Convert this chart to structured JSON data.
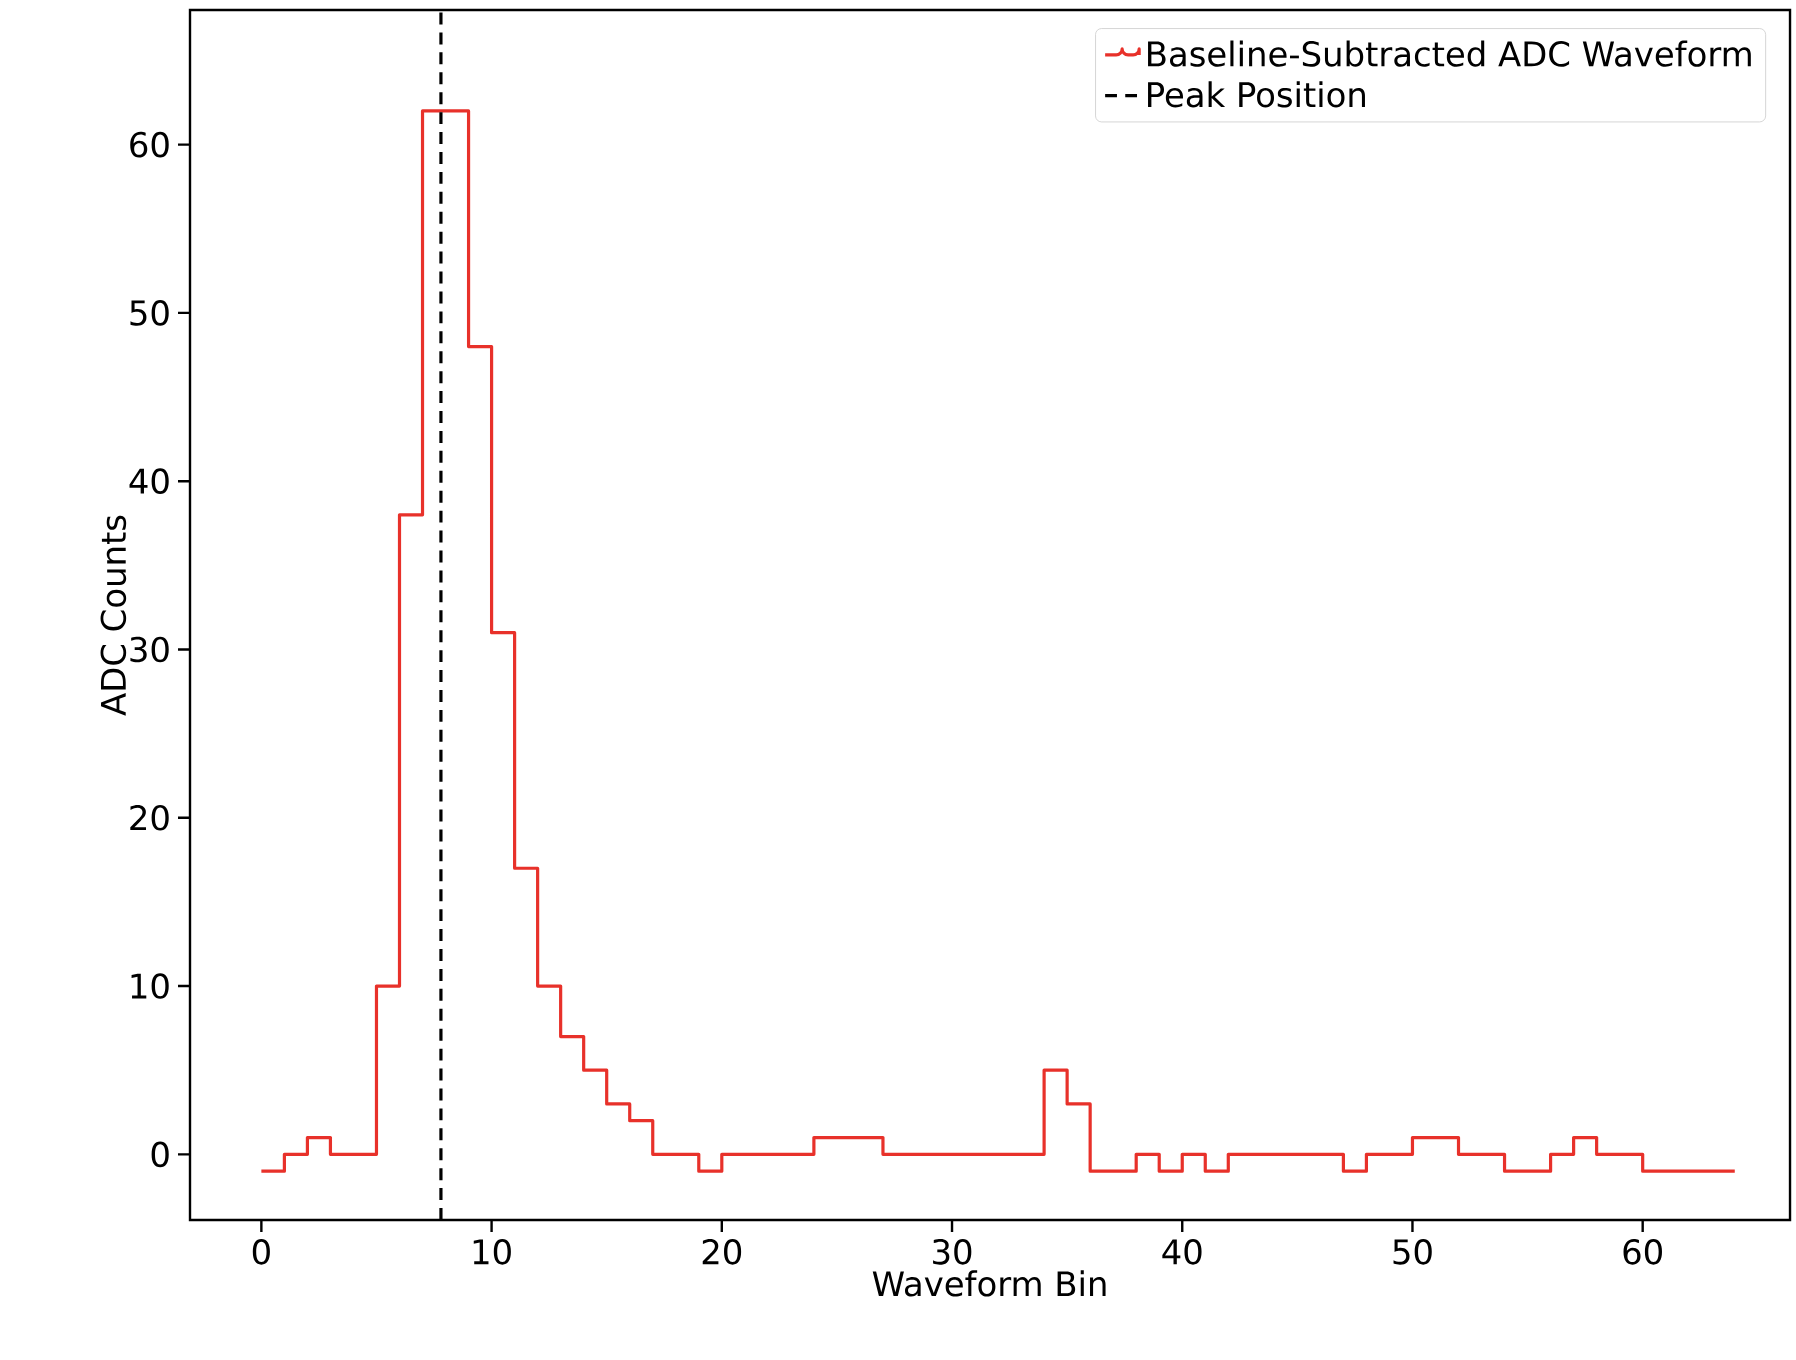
{
  "chart_data": {
    "type": "step",
    "xlabel": "Waveform Bin",
    "ylabel": "ADC Counts",
    "x": [
      0,
      1,
      2,
      3,
      4,
      5,
      6,
      7,
      8,
      9,
      10,
      11,
      12,
      13,
      14,
      15,
      16,
      17,
      18,
      19,
      20,
      21,
      22,
      23,
      24,
      25,
      26,
      27,
      28,
      29,
      30,
      31,
      32,
      33,
      34,
      35,
      36,
      37,
      38,
      39,
      40,
      41,
      42,
      43,
      44,
      45,
      46,
      47,
      48,
      49,
      50,
      51,
      52,
      53,
      54,
      55,
      56,
      57,
      58,
      59,
      60,
      61,
      62,
      63,
      64
    ],
    "series": [
      {
        "name": "Baseline-Subtracted ADC Waveform",
        "color": "#e8312a",
        "values": [
          -1,
          0,
          1,
          0,
          0,
          10,
          38,
          62,
          62,
          48,
          31,
          17,
          10,
          7,
          5,
          3,
          2,
          0,
          0,
          -1,
          0,
          0,
          0,
          0,
          1,
          1,
          1,
          0,
          0,
          0,
          0,
          0,
          0,
          0,
          5,
          3,
          -1,
          -1,
          0,
          -1,
          0,
          -1,
          0,
          0,
          0,
          0,
          0,
          -1,
          0,
          0,
          1,
          1,
          0,
          0,
          -1,
          -1,
          0,
          1,
          0,
          0,
          -1,
          -1,
          -1,
          -1,
          -1
        ]
      }
    ],
    "ref_lines": [
      {
        "axis": "x",
        "value": 7.8,
        "label": "Peak Position",
        "color": "#000000",
        "line_style": "dashed"
      }
    ],
    "xlim": [
      -3.1,
      66.4
    ],
    "ylim": [
      -3.9,
      68
    ],
    "xticks": [
      0,
      10,
      20,
      30,
      40,
      50,
      60
    ],
    "yticks": [
      0,
      10,
      20,
      30,
      40,
      50,
      60
    ],
    "legend": "top right",
    "grid": false,
    "line_style": "solid"
  }
}
